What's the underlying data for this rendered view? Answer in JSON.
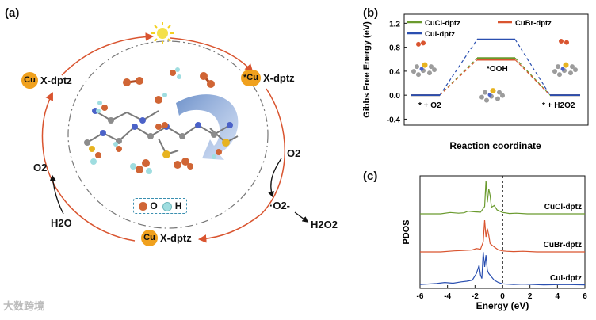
{
  "panel_a": {
    "label": "(a)",
    "cu_label": "Cu",
    "x_dptz": "X-dptz",
    "star_cu": "*Cu",
    "o2_left": "O2",
    "h2o": "H2O",
    "o2_right": "O2",
    "superoxide": "·O2-",
    "h2o2": "H2O2",
    "legend_o": "O",
    "legend_h": "H",
    "colors": {
      "arrow": "#d9542f",
      "cu": "#f0a11e",
      "o": "#d06535",
      "h": "#9fdde0"
    }
  },
  "panel_b": {
    "label": "(b)",
    "species_start": "* + O2",
    "species_mid": "*OOH",
    "species_end": "* + H2O2"
  },
  "panel_c": {
    "label": "(c)"
  },
  "watermark": "大数跨境",
  "chart_data": [
    {
      "type": "line",
      "panel": "b",
      "title": "",
      "xlabel": "Reaction coordinate",
      "ylabel": "Gibbs Free Energy (eV)",
      "ylim": [
        -0.5,
        1.35
      ],
      "yticks": [
        -0.4,
        0.0,
        0.4,
        0.8,
        1.2
      ],
      "categories": [
        "* + O2",
        "*OOH",
        "* + H2O2"
      ],
      "legend": [
        "CuCl-dptz",
        "CuBr-dptz",
        "CuI-dptz"
      ],
      "series": [
        {
          "name": "CuCl-dptz",
          "color": "#6a9a2e",
          "values": [
            0.0,
            0.62,
            0.0
          ]
        },
        {
          "name": "CuBr-dptz",
          "color": "#d9542f",
          "values": [
            0.0,
            0.59,
            0.0
          ]
        },
        {
          "name": "CuI-dptz",
          "color": "#2a4fb0",
          "values": [
            0.0,
            0.93,
            0.0
          ]
        }
      ]
    },
    {
      "type": "line",
      "panel": "c",
      "title": "",
      "xlabel": "Energy (eV)",
      "ylabel": "PDOS",
      "xlim": [
        -6,
        6
      ],
      "xticks": [
        -6,
        -4,
        -2,
        0,
        2,
        4,
        6
      ],
      "fermi_level": 0,
      "series": [
        {
          "name": "CuCl-dptz",
          "color": "#6a9a2e",
          "x": [
            -6,
            -4.5,
            -3.8,
            -3.2,
            -2.8,
            -2.5,
            -2.0,
            -1.6,
            -1.3,
            -1.2,
            -1.1,
            -1.0,
            -0.9,
            -0.8,
            -0.6,
            -0.4,
            -0.2,
            0.0,
            0.2,
            0.5,
            1.0,
            1.8,
            3.0,
            4.5,
            6
          ],
          "values": [
            0,
            0,
            0.04,
            0.02,
            0.03,
            0.08,
            0.06,
            0.05,
            0.22,
            1.0,
            0.35,
            0.75,
            0.55,
            0.2,
            0.25,
            0.12,
            0.08,
            0.04,
            0.03,
            0.01,
            0.02,
            0.0,
            0.0,
            0.0,
            0
          ]
        },
        {
          "name": "CuBr-dptz",
          "color": "#d9542f",
          "x": [
            -6,
            -4.5,
            -3.5,
            -3.0,
            -2.6,
            -2.2,
            -1.9,
            -1.6,
            -1.4,
            -1.3,
            -1.2,
            -1.1,
            -1.0,
            -0.9,
            -0.7,
            -0.5,
            -0.3,
            0.0,
            0.3,
            0.8,
            1.5,
            2.5,
            4.0,
            6
          ],
          "values": [
            0,
            0,
            0.03,
            0.04,
            0.05,
            0.06,
            0.1,
            0.08,
            0.3,
            0.95,
            0.45,
            0.7,
            0.5,
            0.25,
            0.18,
            0.12,
            0.06,
            0.03,
            0.02,
            0.01,
            0.02,
            0.0,
            0.0,
            0
          ]
        },
        {
          "name": "CuI-dptz",
          "color": "#2a4fb0",
          "x": [
            -6,
            -4.8,
            -4.2,
            -3.6,
            -3.0,
            -2.6,
            -2.2,
            -1.9,
            -1.7,
            -1.6,
            -1.5,
            -1.4,
            -1.3,
            -1.2,
            -1.1,
            -1.0,
            -0.8,
            -0.6,
            -0.3,
            0.0,
            0.3,
            0.8,
            1.5,
            3.0,
            4.5,
            6
          ],
          "values": [
            0.02,
            0.05,
            0.08,
            0.06,
            0.1,
            0.12,
            0.15,
            0.35,
            0.6,
            0.3,
            0.2,
            1.0,
            0.55,
            0.9,
            0.45,
            0.35,
            0.25,
            0.15,
            0.08,
            0.04,
            0.03,
            0.02,
            0.03,
            0.01,
            0.02,
            0.01
          ]
        }
      ]
    }
  ]
}
